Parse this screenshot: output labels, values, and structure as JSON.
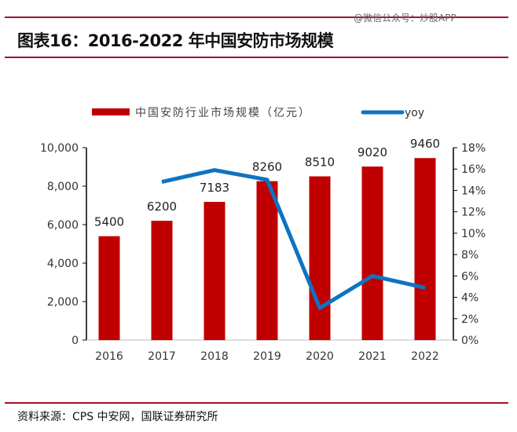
{
  "header": {
    "title": "图表16：2016-2022 年中国安防市场规模",
    "watermark": "@微信公众号：炒股APP"
  },
  "footer": {
    "source": "资料来源：CPS 中安网，国联证券研究所"
  },
  "colors": {
    "bar": "#c00000",
    "line": "#0e73c1",
    "rule": "#a4122c"
  },
  "chart_data": {
    "type": "bar+line",
    "categories": [
      "2016",
      "2017",
      "2018",
      "2019",
      "2020",
      "2021",
      "2022"
    ],
    "series": [
      {
        "name": "中国安防行业市场规模（亿元）",
        "type": "bar",
        "axis": "left",
        "values": [
          5400,
          6200,
          7183,
          8260,
          8510,
          9020,
          9460
        ],
        "labels": [
          "5400",
          "6200",
          "7183",
          "8260",
          "8510",
          "9020",
          "9460"
        ]
      },
      {
        "name": "yoy",
        "type": "line",
        "axis": "right",
        "values": [
          null,
          14.8,
          15.9,
          15.0,
          3.0,
          6.0,
          4.9
        ]
      }
    ],
    "left_axis": {
      "ylim": [
        0,
        10000
      ],
      "ticks": [
        "0",
        "2,000",
        "4,000",
        "6,000",
        "8,000",
        "10,000"
      ]
    },
    "right_axis": {
      "ylim": [
        0,
        18
      ],
      "ticks": [
        "0%",
        "2%",
        "4%",
        "6%",
        "8%",
        "10%",
        "12%",
        "14%",
        "16%",
        "18%"
      ]
    },
    "legend": "top",
    "grid": false
  }
}
